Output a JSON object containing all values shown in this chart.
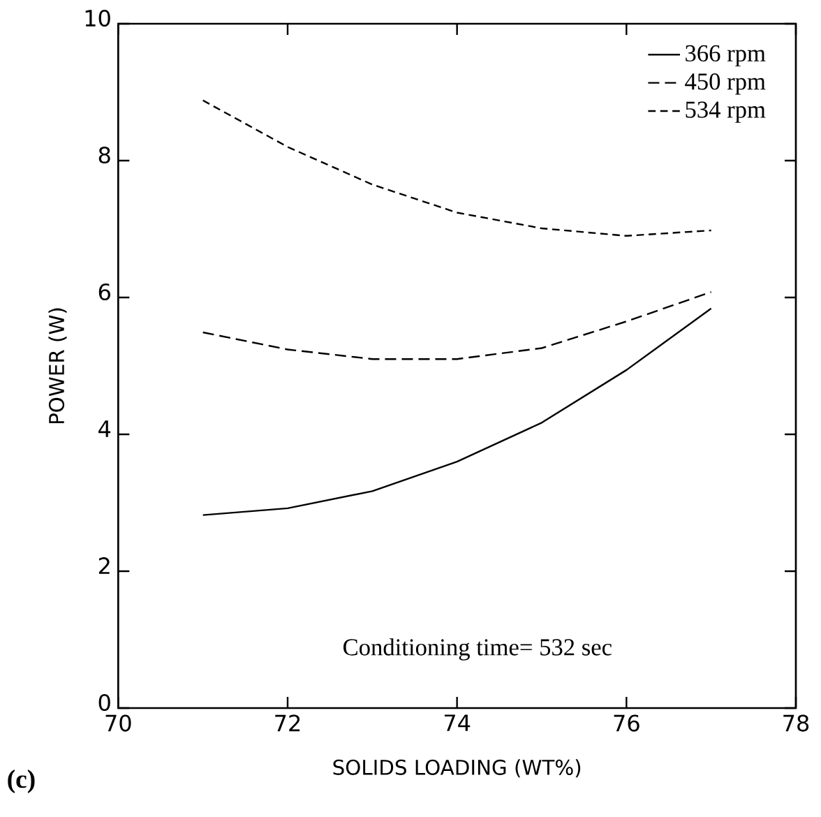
{
  "chart_data": {
    "type": "line",
    "xlabel": "SOLIDS LOADING (WT%)",
    "ylabel": "POWER (W)",
    "xlim": [
      70,
      78
    ],
    "xticks": [
      70,
      72,
      74,
      76,
      78
    ],
    "ylim": [
      0,
      10
    ],
    "yticks": [
      0,
      2,
      4,
      6,
      8,
      10
    ],
    "x": [
      71,
      72,
      73,
      74,
      75,
      76,
      77
    ],
    "series": [
      {
        "name": "366 rpm",
        "color": "#000000",
        "line_style": "solid",
        "values": [
          2.82,
          2.92,
          3.17,
          3.6,
          4.17,
          4.94,
          5.84
        ]
      },
      {
        "name": "450 rpm",
        "color": "#000000",
        "line_style": "dashed",
        "values": [
          5.49,
          5.24,
          5.1,
          5.1,
          5.26,
          5.65,
          6.08
        ]
      },
      {
        "name": "534 rpm",
        "color": "#000000",
        "line_style": "dashed",
        "values": [
          8.88,
          8.2,
          7.65,
          7.24,
          7.01,
          6.9,
          6.98
        ]
      }
    ],
    "legend": "top right",
    "grid": false,
    "marker": "none",
    "annotations": [
      "Conditioning time= 532 sec",
      "(c)"
    ]
  }
}
